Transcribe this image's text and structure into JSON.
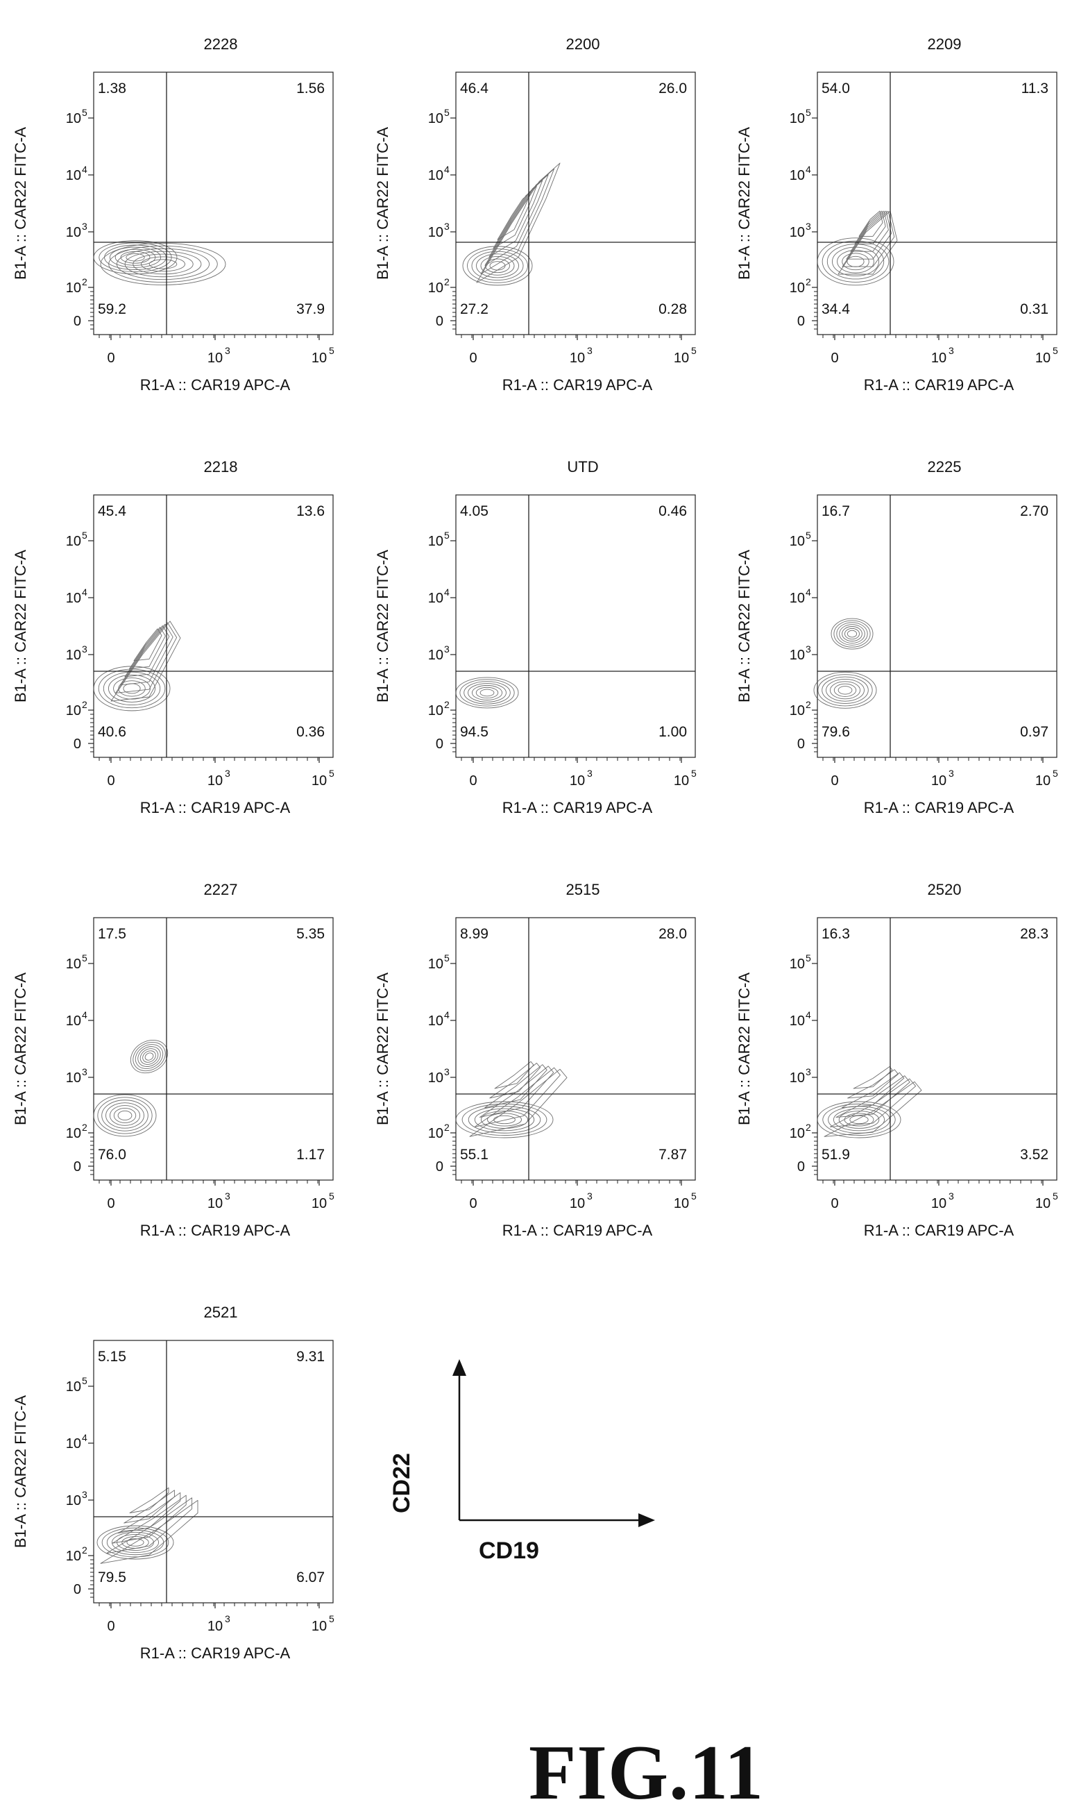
{
  "figure_label": "FIG.11",
  "legend": {
    "x_label": "CD19",
    "y_label": "CD22"
  },
  "chart_data": [
    {
      "type": "contour",
      "title": "2228",
      "xlabel": "R1-A :: CAR19 APC-A",
      "ylabel": "B1-A :: CAR22 FITC-A",
      "x_ticks": [
        "0",
        "10",
        "10"
      ],
      "x_tick_exps": [
        "",
        "3",
        "5"
      ],
      "y_ticks": [
        "0",
        "10",
        "10",
        "10",
        "10"
      ],
      "y_tick_exps": [
        "",
        "2",
        "3",
        "4",
        "5"
      ],
      "quadrants": {
        "UL": "1.38",
        "UR": "1.56",
        "LL": "59.2",
        "LR": "37.9"
      }
    },
    {
      "type": "contour",
      "title": "2200",
      "xlabel": "R1-A :: CAR19 APC-A",
      "ylabel": "B1-A :: CAR22 FITC-A",
      "x_ticks": [
        "0",
        "10",
        "10"
      ],
      "x_tick_exps": [
        "",
        "3",
        "5"
      ],
      "y_ticks": [
        "0",
        "10",
        "10",
        "10",
        "10"
      ],
      "y_tick_exps": [
        "",
        "2",
        "3",
        "4",
        "5"
      ],
      "quadrants": {
        "UL": "46.4",
        "UR": "26.0",
        "LL": "27.2",
        "LR": "0.28"
      }
    },
    {
      "type": "contour",
      "title": "2209",
      "xlabel": "R1-A :: CAR19 APC-A",
      "ylabel": "B1-A :: CAR22 FITC-A",
      "x_ticks": [
        "0",
        "10",
        "10"
      ],
      "x_tick_exps": [
        "",
        "3",
        "5"
      ],
      "y_ticks": [
        "0",
        "10",
        "10",
        "10",
        "10"
      ],
      "y_tick_exps": [
        "",
        "2",
        "3",
        "4",
        "5"
      ],
      "quadrants": {
        "UL": "54.0",
        "UR": "11.3",
        "LL": "34.4",
        "LR": "0.31"
      }
    },
    {
      "type": "contour",
      "title": "2218",
      "xlabel": "R1-A :: CAR19 APC-A",
      "ylabel": "B1-A :: CAR22 FITC-A",
      "x_ticks": [
        "0",
        "10",
        "10"
      ],
      "x_tick_exps": [
        "",
        "3",
        "5"
      ],
      "y_ticks": [
        "0",
        "10",
        "10",
        "10",
        "10"
      ],
      "y_tick_exps": [
        "",
        "2",
        "3",
        "4",
        "5"
      ],
      "quadrants": {
        "UL": "45.4",
        "UR": "13.6",
        "LL": "40.6",
        "LR": "0.36"
      }
    },
    {
      "type": "contour",
      "title": "UTD",
      "xlabel": "R1-A :: CAR19 APC-A",
      "ylabel": "B1-A :: CAR22 FITC-A",
      "x_ticks": [
        "0",
        "10",
        "10"
      ],
      "x_tick_exps": [
        "",
        "3",
        "5"
      ],
      "y_ticks": [
        "0",
        "10",
        "10",
        "10",
        "10"
      ],
      "y_tick_exps": [
        "",
        "2",
        "3",
        "4",
        "5"
      ],
      "quadrants": {
        "UL": "4.05",
        "UR": "0.46",
        "LL": "94.5",
        "LR": "1.00"
      }
    },
    {
      "type": "contour",
      "title": "2225",
      "xlabel": "R1-A :: CAR19 APC-A",
      "ylabel": "B1-A :: CAR22 FITC-A",
      "x_ticks": [
        "0",
        "10",
        "10"
      ],
      "x_tick_exps": [
        "",
        "3",
        "5"
      ],
      "y_ticks": [
        "0",
        "10",
        "10",
        "10",
        "10"
      ],
      "y_tick_exps": [
        "",
        "2",
        "3",
        "4",
        "5"
      ],
      "quadrants": {
        "UL": "16.7",
        "UR": "2.70",
        "LL": "79.6",
        "LR": "0.97"
      }
    },
    {
      "type": "contour",
      "title": "2227",
      "xlabel": "R1-A :: CAR19 APC-A",
      "ylabel": "B1-A :: CAR22 FITC-A",
      "x_ticks": [
        "0",
        "10",
        "10"
      ],
      "x_tick_exps": [
        "",
        "3",
        "5"
      ],
      "y_ticks": [
        "0",
        "10",
        "10",
        "10",
        "10"
      ],
      "y_tick_exps": [
        "",
        "2",
        "3",
        "4",
        "5"
      ],
      "quadrants": {
        "UL": "17.5",
        "UR": "5.35",
        "LL": "76.0",
        "LR": "1.17"
      }
    },
    {
      "type": "contour",
      "title": "2515",
      "xlabel": "R1-A :: CAR19 APC-A",
      "ylabel": "B1-A :: CAR22 FITC-A",
      "x_ticks": [
        "0",
        "10",
        "10"
      ],
      "x_tick_exps": [
        "",
        "3",
        "5"
      ],
      "y_ticks": [
        "0",
        "10",
        "10",
        "10",
        "10"
      ],
      "y_tick_exps": [
        "",
        "2",
        "3",
        "4",
        "5"
      ],
      "quadrants": {
        "UL": "8.99",
        "UR": "28.0",
        "LL": "55.1",
        "LR": "7.87"
      }
    },
    {
      "type": "contour",
      "title": "2520",
      "xlabel": "R1-A :: CAR19 APC-A",
      "ylabel": "B1-A :: CAR22 FITC-A",
      "x_ticks": [
        "0",
        "10",
        "10"
      ],
      "x_tick_exps": [
        "",
        "3",
        "5"
      ],
      "y_ticks": [
        "0",
        "10",
        "10",
        "10",
        "10"
      ],
      "y_tick_exps": [
        "",
        "2",
        "3",
        "4",
        "5"
      ],
      "quadrants": {
        "UL": "16.3",
        "UR": "28.3",
        "LL": "51.9",
        "LR": "3.52"
      }
    },
    {
      "type": "contour",
      "title": "2521",
      "xlabel": "R1-A :: CAR19 APC-A",
      "ylabel": "B1-A :: CAR22 FITC-A",
      "x_ticks": [
        "0",
        "10",
        "10"
      ],
      "x_tick_exps": [
        "",
        "3",
        "5"
      ],
      "y_ticks": [
        "0",
        "10",
        "10",
        "10",
        "10"
      ],
      "y_tick_exps": [
        "",
        "2",
        "3",
        "4",
        "5"
      ],
      "quadrants": {
        "UL": "5.15",
        "UR": "9.31",
        "LL": "79.5",
        "LR": "6.07"
      }
    }
  ]
}
